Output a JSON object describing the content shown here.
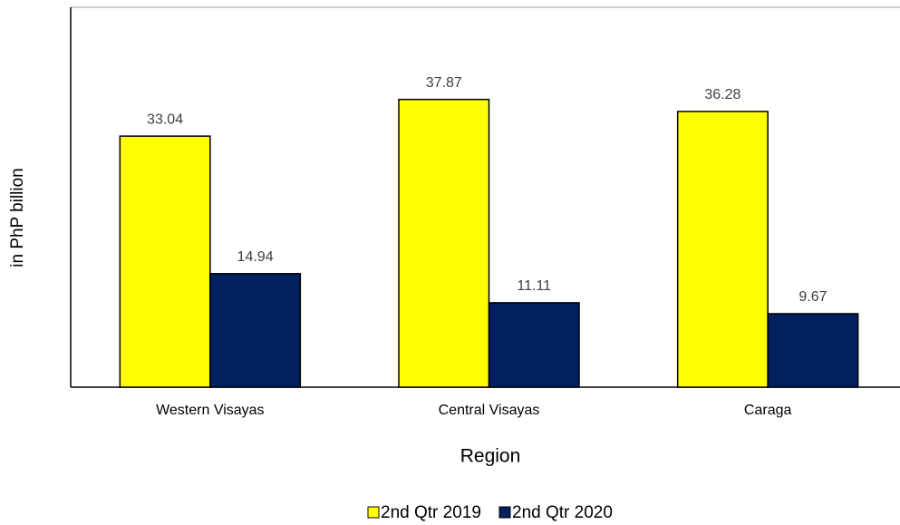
{
  "chart_data": {
    "type": "bar",
    "categories": [
      "Western Visayas",
      "Central Visayas",
      "Caraga"
    ],
    "series": [
      {
        "name": "2nd Qtr 2019",
        "color": "#ffff00",
        "values": [
          33.04,
          37.87,
          36.28
        ]
      },
      {
        "name": "2nd Qtr 2020",
        "color": "#002060",
        "values": [
          14.94,
          11.11,
          9.67
        ]
      }
    ],
    "ylim": [
      0,
      50
    ],
    "xlabel": "Region",
    "ylabel": "in PhP billion",
    "legend": "bottom"
  }
}
